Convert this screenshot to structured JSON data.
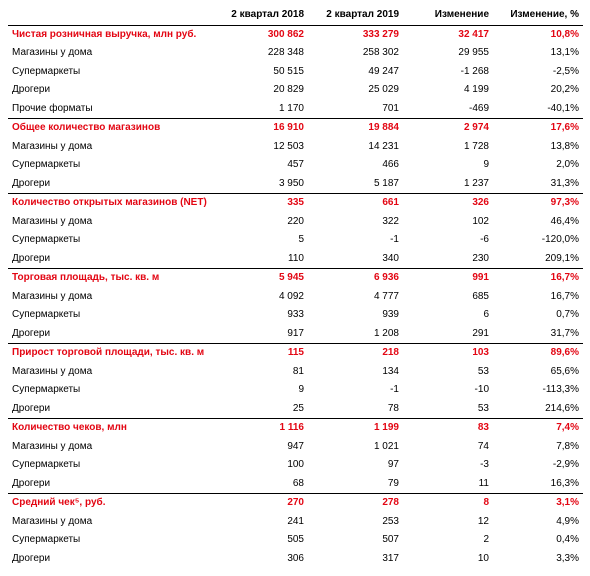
{
  "colors": {
    "accent": "#e30613",
    "text": "#000000",
    "rule": "#000000",
    "bg": "#ffffff"
  },
  "headers": {
    "label": "",
    "q2018": "2 квартал 2018",
    "q2019": "2 квартал 2019",
    "change": "Изменение",
    "change_pct": "Изменение, %"
  },
  "sections": [
    {
      "title": "Чистая розничная выручка, млн руб.",
      "q2018": "300 862",
      "q2019": "333 279",
      "change": "32 417",
      "change_pct": "10,8%",
      "rows": [
        {
          "label": "Магазины у дома",
          "q2018": "228 348",
          "q2019": "258 302",
          "change": "29 955",
          "change_pct": "13,1%"
        },
        {
          "label": "Супермаркеты",
          "q2018": "50 515",
          "q2019": "49 247",
          "change": "-1 268",
          "change_pct": "-2,5%"
        },
        {
          "label": "Дрогери",
          "q2018": "20 829",
          "q2019": "25 029",
          "change": "4 199",
          "change_pct": "20,2%"
        },
        {
          "label": "Прочие форматы",
          "q2018": "1 170",
          "q2019": "701",
          "change": "-469",
          "change_pct": "-40,1%"
        }
      ]
    },
    {
      "title": "Общее количество магазинов",
      "q2018": "16 910",
      "q2019": "19 884",
      "change": "2 974",
      "change_pct": "17,6%",
      "rows": [
        {
          "label": "Магазины у дома",
          "q2018": "12 503",
          "q2019": "14 231",
          "change": "1 728",
          "change_pct": "13,8%"
        },
        {
          "label": "Супермаркеты",
          "q2018": "457",
          "q2019": "466",
          "change": "9",
          "change_pct": "2,0%"
        },
        {
          "label": "Дрогери",
          "q2018": "3 950",
          "q2019": "5 187",
          "change": "1 237",
          "change_pct": "31,3%"
        }
      ]
    },
    {
      "title": "Количество открытых магазинов (NET)",
      "q2018": "335",
      "q2019": "661",
      "change": "326",
      "change_pct": "97,3%",
      "rows": [
        {
          "label": "Магазины у дома",
          "q2018": "220",
          "q2019": "322",
          "change": "102",
          "change_pct": "46,4%"
        },
        {
          "label": "Супермаркеты",
          "q2018": "5",
          "q2019": "-1",
          "change": "-6",
          "change_pct": "-120,0%"
        },
        {
          "label": "Дрогери",
          "q2018": "110",
          "q2019": "340",
          "change": "230",
          "change_pct": "209,1%"
        }
      ]
    },
    {
      "title": "Торговая площадь, тыс. кв. м",
      "q2018": "5 945",
      "q2019": "6 936",
      "change": "991",
      "change_pct": "16,7%",
      "rows": [
        {
          "label": "Магазины у дома",
          "q2018": "4 092",
          "q2019": "4 777",
          "change": "685",
          "change_pct": "16,7%"
        },
        {
          "label": "Супермаркеты",
          "q2018": "933",
          "q2019": "939",
          "change": "6",
          "change_pct": "0,7%"
        },
        {
          "label": "Дрогери",
          "q2018": "917",
          "q2019": "1 208",
          "change": "291",
          "change_pct": "31,7%"
        }
      ]
    },
    {
      "title": "Прирост торговой площади, тыс. кв. м",
      "q2018": "115",
      "q2019": "218",
      "change": "103",
      "change_pct": "89,6%",
      "rows": [
        {
          "label": "Магазины у дома",
          "q2018": "81",
          "q2019": "134",
          "change": "53",
          "change_pct": "65,6%"
        },
        {
          "label": "Супермаркеты",
          "q2018": "9",
          "q2019": "-1",
          "change": "-10",
          "change_pct": "-113,3%"
        },
        {
          "label": "Дрогери",
          "q2018": "25",
          "q2019": "78",
          "change": "53",
          "change_pct": "214,6%"
        }
      ]
    },
    {
      "title": "Количество чеков, млн",
      "q2018": "1 116",
      "q2019": "1 199",
      "change": "83",
      "change_pct": "7,4%",
      "rows": [
        {
          "label": "Магазины у дома",
          "q2018": "947",
          "q2019": "1 021",
          "change": "74",
          "change_pct": "7,8%"
        },
        {
          "label": "Супермаркеты",
          "q2018": "100",
          "q2019": "97",
          "change": "-3",
          "change_pct": "-2,9%"
        },
        {
          "label": "Дрогери",
          "q2018": "68",
          "q2019": "79",
          "change": "11",
          "change_pct": "16,3%"
        }
      ]
    },
    {
      "title": "Средний чек⁵, руб.",
      "q2018": "270",
      "q2019": "278",
      "change": "8",
      "change_pct": "3,1%",
      "rows": [
        {
          "label": "Магазины у дома",
          "q2018": "241",
          "q2019": "253",
          "change": "12",
          "change_pct": "4,9%"
        },
        {
          "label": "Супермаркеты",
          "q2018": "505",
          "q2019": "507",
          "change": "2",
          "change_pct": "0,4%"
        },
        {
          "label": "Дрогери",
          "q2018": "306",
          "q2019": "317",
          "change": "10",
          "change_pct": "3,3%"
        }
      ]
    }
  ]
}
